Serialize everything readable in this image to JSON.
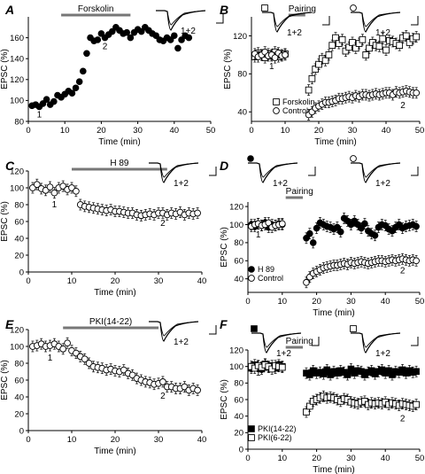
{
  "chart_data": [
    {
      "panel": "A",
      "type": "scatter",
      "ylabel": "EPSC (%)",
      "xlabel": "Time (min)",
      "xlim": [
        0,
        50
      ],
      "ylim": [
        80,
        180
      ],
      "xticks": [
        0,
        10,
        20,
        30,
        40,
        50
      ],
      "yticks": [
        80,
        100,
        120,
        140,
        160
      ],
      "bar_label": "Forskolin",
      "bar_range": [
        9,
        28
      ],
      "labels": [
        {
          "text": "1",
          "x": 3,
          "y": 84
        },
        {
          "text": "2",
          "x": 21,
          "y": 149
        }
      ],
      "trace_labels": [
        "1+2"
      ],
      "series": [
        {
          "marker": "filled-circle",
          "error_bars": false,
          "x": [
            1,
            2,
            3,
            4,
            5,
            6,
            7,
            8,
            9,
            10,
            11,
            12,
            13,
            14,
            15,
            16,
            17,
            18,
            19,
            20,
            21,
            22,
            23,
            24,
            25,
            26,
            27,
            28,
            29,
            30,
            31,
            32,
            33,
            34,
            35,
            36,
            37,
            38,
            39,
            40,
            41,
            42,
            43,
            44
          ],
          "y": [
            95,
            96,
            94,
            97,
            101,
            96,
            99,
            105,
            103,
            106,
            109,
            107,
            112,
            118,
            128,
            145,
            160,
            157,
            158,
            164,
            160,
            163,
            166,
            170,
            167,
            164,
            165,
            160,
            165,
            168,
            166,
            170,
            167,
            164,
            162,
            158,
            157,
            160,
            158,
            162,
            150,
            158,
            162,
            160
          ]
        }
      ]
    },
    {
      "panel": "B",
      "type": "scatter",
      "ylabel": "EPSC (%)",
      "xlabel": "Time (min)",
      "xlim": [
        0,
        50
      ],
      "ylim": [
        30,
        140
      ],
      "xticks": [
        0,
        10,
        20,
        30,
        40,
        50
      ],
      "yticks": [
        40,
        80,
        120
      ],
      "bar_label": "Pairing",
      "bar_range": [
        11,
        16
      ],
      "labels": [
        {
          "text": "1",
          "x": 6,
          "y": 85
        },
        {
          "text": "2",
          "x": 45,
          "y": 44
        }
      ],
      "trace_labels": [
        "1+2",
        "1+2"
      ],
      "series": [
        {
          "name": "Forskolin",
          "marker": "open-square",
          "error_bars": true,
          "x": [
            1,
            2,
            3,
            4,
            5,
            6,
            7,
            8,
            9,
            10,
            17,
            18,
            19,
            20,
            21,
            22,
            23,
            24,
            25,
            26,
            27,
            28,
            29,
            30,
            31,
            32,
            33,
            34,
            35,
            36,
            37,
            38,
            39,
            40,
            41,
            42,
            43,
            44,
            45,
            46,
            47,
            48,
            49
          ],
          "y": [
            98,
            102,
            100,
            97,
            101,
            99,
            103,
            98,
            100,
            101,
            63,
            75,
            85,
            90,
            96,
            94,
            100,
            110,
            118,
            112,
            116,
            104,
            108,
            113,
            107,
            112,
            116,
            100,
            107,
            113,
            110,
            109,
            117,
            105,
            115,
            114,
            112,
            110,
            118,
            120,
            113,
            117,
            119
          ]
        },
        {
          "name": "Control",
          "marker": "open-circle",
          "error_bars": true,
          "x": [
            1,
            2,
            3,
            4,
            5,
            6,
            7,
            8,
            9,
            10,
            17,
            18,
            19,
            20,
            21,
            22,
            23,
            24,
            25,
            26,
            27,
            28,
            29,
            30,
            31,
            32,
            33,
            34,
            35,
            36,
            37,
            38,
            39,
            40,
            41,
            42,
            43,
            44,
            45,
            46,
            47,
            48,
            49
          ],
          "y": [
            101,
            98,
            100,
            103,
            99,
            100,
            97,
            102,
            99,
            100,
            37,
            40,
            44,
            46,
            48,
            50,
            50,
            51,
            52,
            54,
            54,
            55,
            56,
            55,
            57,
            56,
            58,
            58,
            57,
            58,
            59,
            58,
            59,
            60,
            60,
            58,
            61,
            60,
            61,
            62,
            61,
            60,
            60
          ]
        }
      ]
    },
    {
      "panel": "C",
      "type": "scatter",
      "ylabel": "EPSC (%)",
      "xlabel": "Time (min)",
      "xlim": [
        0,
        40
      ],
      "ylim": [
        0,
        120
      ],
      "xticks": [
        0,
        10,
        20,
        30,
        40
      ],
      "yticks": [
        0,
        20,
        40,
        60,
        80,
        100,
        120
      ],
      "bar_label": "H 89",
      "bar_range": [
        10,
        32
      ],
      "labels": [
        {
          "text": "1",
          "x": 6,
          "y": 77
        },
        {
          "text": "2",
          "x": 31,
          "y": 55
        }
      ],
      "trace_labels": [
        "1+2"
      ],
      "series": [
        {
          "marker": "open-circle",
          "error_bars": true,
          "x": [
            1,
            2,
            3,
            4,
            5,
            6,
            7,
            8,
            9,
            10,
            11,
            12,
            13,
            14,
            15,
            16,
            17,
            18,
            19,
            20,
            21,
            22,
            23,
            24,
            25,
            26,
            27,
            28,
            29,
            30,
            31,
            32,
            33,
            34,
            35,
            36,
            37,
            38,
            39
          ],
          "y": [
            100,
            104,
            99,
            97,
            101,
            94,
            100,
            102,
            98,
            100,
            96,
            80,
            78,
            77,
            76,
            75,
            74,
            73,
            74,
            72,
            72,
            71,
            70,
            70,
            68,
            67,
            68,
            69,
            68,
            70,
            70,
            68,
            70,
            69,
            71,
            68,
            70,
            69,
            70
          ]
        }
      ]
    },
    {
      "panel": "D",
      "type": "scatter",
      "ylabel": "EPSC (%)",
      "xlabel": "Time (min)",
      "xlim": [
        0,
        50
      ],
      "ylim": [
        25,
        125
      ],
      "xticks": [
        0,
        10,
        20,
        30,
        40,
        50
      ],
      "yticks": [
        40,
        60,
        80,
        100,
        120
      ],
      "bar_label": "Pairing",
      "bar_range": [
        11,
        16
      ],
      "labels": [
        {
          "text": "1",
          "x": 3,
          "y": 86
        },
        {
          "text": "2",
          "x": 45,
          "y": 46
        }
      ],
      "trace_labels": [
        "1+2",
        "1+2"
      ],
      "series": [
        {
          "name": "H 89",
          "marker": "filled-circle",
          "error_bars": true,
          "x": [
            1,
            2,
            3,
            4,
            5,
            6,
            7,
            8,
            9,
            10,
            17,
            18,
            19,
            20,
            21,
            22,
            23,
            24,
            25,
            26,
            27,
            28,
            29,
            30,
            31,
            32,
            33,
            34,
            35,
            36,
            37,
            38,
            39,
            40,
            41,
            42,
            43,
            44,
            45,
            46,
            47,
            48,
            49
          ],
          "y": [
            100,
            98,
            101,
            99,
            102,
            97,
            100,
            99,
            101,
            100,
            85,
            90,
            80,
            96,
            102,
            100,
            98,
            97,
            95,
            97,
            92,
            107,
            104,
            100,
            104,
            100,
            96,
            101,
            93,
            90,
            88,
            97,
            100,
            99,
            95,
            93,
            97,
            100,
            96,
            98,
            99,
            100,
            98
          ]
        },
        {
          "name": "Control",
          "marker": "open-circle",
          "error_bars": true,
          "x": [
            1,
            2,
            3,
            4,
            5,
            6,
            7,
            8,
            9,
            10,
            17,
            18,
            19,
            20,
            21,
            22,
            23,
            24,
            25,
            26,
            27,
            28,
            29,
            30,
            31,
            32,
            33,
            34,
            35,
            36,
            37,
            38,
            39,
            40,
            41,
            42,
            43,
            44,
            45,
            46,
            47,
            48,
            49
          ],
          "y": [
            98,
            100,
            101,
            99,
            100,
            102,
            97,
            99,
            100,
            101,
            36,
            42,
            46,
            48,
            50,
            52,
            53,
            54,
            55,
            55,
            56,
            57,
            56,
            58,
            57,
            58,
            59,
            58,
            57,
            58,
            59,
            60,
            60,
            59,
            60,
            61,
            60,
            61,
            62,
            61,
            60,
            61,
            60
          ]
        }
      ]
    },
    {
      "panel": "E",
      "type": "scatter",
      "ylabel": "EPSC (%)",
      "xlabel": "Time (min)",
      "xlim": [
        0,
        40
      ],
      "ylim": [
        0,
        120
      ],
      "xticks": [
        0,
        10,
        20,
        30,
        40
      ],
      "yticks": [
        0,
        20,
        40,
        60,
        80,
        100,
        120
      ],
      "bar_label": "PKI(14-22)",
      "bar_range": [
        8,
        30
      ],
      "labels": [
        {
          "text": "1",
          "x": 5,
          "y": 83
        },
        {
          "text": "2",
          "x": 31,
          "y": 38
        }
      ],
      "trace_labels": [
        "1+2"
      ],
      "series": [
        {
          "marker": "open-circle",
          "error_bars": true,
          "x": [
            1,
            2,
            3,
            4,
            5,
            6,
            7,
            8,
            9,
            10,
            11,
            12,
            13,
            14,
            15,
            16,
            17,
            18,
            19,
            20,
            21,
            22,
            23,
            24,
            25,
            26,
            27,
            28,
            29,
            30,
            31,
            32,
            33,
            34,
            35,
            36,
            37,
            38,
            39
          ],
          "y": [
            100,
            101,
            103,
            100,
            101,
            103,
            100,
            97,
            104,
            95,
            92,
            88,
            85,
            80,
            76,
            75,
            74,
            72,
            73,
            71,
            70,
            72,
            68,
            66,
            62,
            60,
            58,
            57,
            55,
            56,
            58,
            52,
            52,
            50,
            50,
            52,
            48,
            50,
            48
          ]
        }
      ]
    },
    {
      "panel": "F",
      "type": "scatter",
      "ylabel": "EPSC (%)",
      "xlabel": "Time (min)",
      "xlim": [
        0,
        50
      ],
      "ylim": [
        0,
        120
      ],
      "xticks": [
        0,
        10,
        20,
        30,
        40,
        50
      ],
      "yticks": [
        0,
        20,
        40,
        60,
        80,
        100,
        120
      ],
      "bar_label": "Pairing",
      "bar_range": [
        11,
        16
      ],
      "labels": [
        {
          "text": "1",
          "x": 3,
          "y": 89
        },
        {
          "text": "2",
          "x": 45,
          "y": 34
        }
      ],
      "trace_labels": [
        "1+2",
        "1+2"
      ],
      "series": [
        {
          "name": "PKI(14-22)",
          "marker": "filled-square",
          "error_bars": true,
          "x": [
            1,
            2,
            3,
            4,
            5,
            6,
            7,
            8,
            9,
            10,
            17,
            18,
            19,
            20,
            21,
            22,
            23,
            24,
            25,
            26,
            27,
            28,
            29,
            30,
            31,
            32,
            33,
            34,
            35,
            36,
            37,
            38,
            39,
            40,
            41,
            42,
            43,
            44,
            45,
            46,
            47,
            48,
            49
          ],
          "y": [
            98,
            102,
            100,
            97,
            103,
            99,
            101,
            98,
            102,
            100,
            92,
            90,
            95,
            92,
            93,
            91,
            96,
            90,
            94,
            92,
            95,
            93,
            90,
            97,
            92,
            95,
            94,
            90,
            93,
            95,
            91,
            94,
            96,
            92,
            95,
            90,
            94,
            93,
            96,
            92,
            95,
            93,
            94
          ]
        },
        {
          "name": "PKI(6-22)",
          "marker": "open-square",
          "error_bars": true,
          "x": [
            1,
            2,
            3,
            4,
            5,
            6,
            7,
            8,
            9,
            10,
            17,
            18,
            19,
            20,
            21,
            22,
            23,
            24,
            25,
            26,
            27,
            28,
            29,
            30,
            31,
            32,
            33,
            34,
            35,
            36,
            37,
            38,
            39,
            40,
            41,
            42,
            43,
            44,
            45,
            46,
            47,
            48,
            49
          ],
          "y": [
            100,
            98,
            101,
            99,
            102,
            100,
            97,
            101,
            100,
            99,
            45,
            52,
            58,
            60,
            62,
            64,
            62,
            63,
            62,
            60,
            58,
            61,
            60,
            57,
            56,
            55,
            57,
            58,
            54,
            56,
            55,
            56,
            55,
            57,
            54,
            56,
            55,
            53,
            55,
            54,
            53,
            52,
            54
          ]
        }
      ]
    }
  ],
  "panel_letters": [
    "A",
    "B",
    "C",
    "D",
    "E",
    "F"
  ],
  "legend_text": [
    "Forskolin",
    "Control",
    "H 89",
    "Control",
    "PKI(14-22)",
    "PKI(6-22)"
  ]
}
